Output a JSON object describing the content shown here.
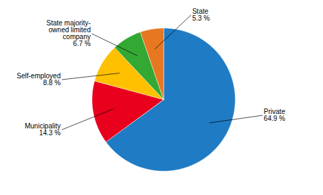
{
  "chart_data": {
    "type": "pie",
    "categories": [
      "Private",
      "Municipality",
      "Self-employed",
      "State majority-\nowned limited\ncompany",
      "State"
    ],
    "values": [
      64.9,
      14.3,
      8.8,
      6.7,
      5.3
    ],
    "value_labels": [
      "64.9 %",
      "14.3 %",
      "8.8 %",
      "6.7 %",
      "5.3 %"
    ],
    "colors": [
      "#1E7BC4",
      "#E8001D",
      "#FFC000",
      "#33A833",
      "#E87722"
    ],
    "data_labels": true
  }
}
